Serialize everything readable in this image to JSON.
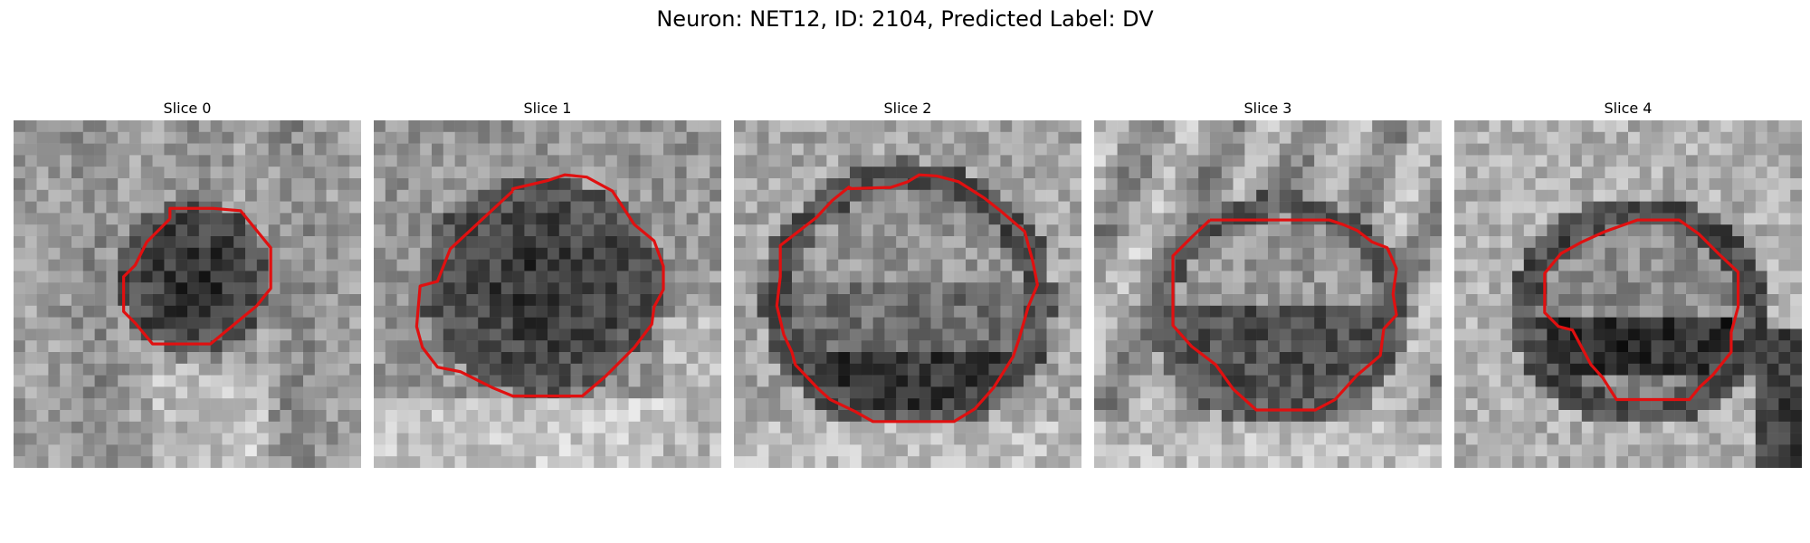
{
  "figure": {
    "title": "Neuron: NET12, ID: 2104, Predicted Label: DV"
  },
  "colors": {
    "contour": "#e01010",
    "background": "#ffffff"
  },
  "panels": [
    {
      "title": "Slice 0",
      "brightness": "light-background-dark-center"
    },
    {
      "title": "Slice 1",
      "brightness": "dark-large-center"
    },
    {
      "title": "Slice 2",
      "brightness": "dark-ring-light-interior"
    },
    {
      "title": "Slice 3",
      "brightness": "mid-gray-dark-lower-interior"
    },
    {
      "title": "Slice 4",
      "brightness": "light-background-dark-band"
    }
  ]
}
